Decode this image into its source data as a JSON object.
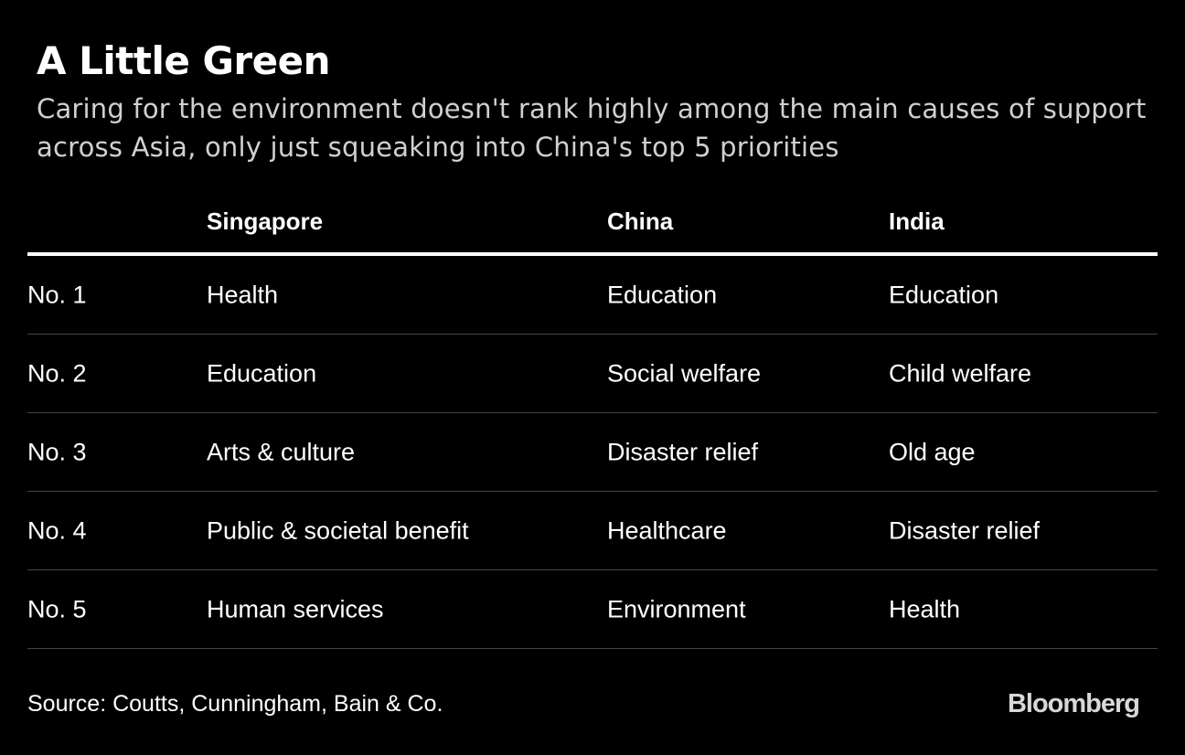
{
  "title": "A Little Green",
  "subtitle": "Caring for the environment doesn't rank highly among the main causes of support across Asia, only just squeaking into China's top 5 priorities",
  "chart_data": {
    "type": "table",
    "columns": [
      "",
      "Singapore",
      "China",
      "India"
    ],
    "rows": [
      [
        "No. 1",
        "Health",
        "Education",
        "Education"
      ],
      [
        "No. 2",
        "Education",
        "Social welfare",
        "Child welfare"
      ],
      [
        "No. 3",
        "Arts & culture",
        "Disaster relief",
        "Old age"
      ],
      [
        "No. 4",
        "Public & societal benefit",
        "Healthcare",
        "Disaster relief"
      ],
      [
        "No. 5",
        "Human services",
        "Environment",
        "Health"
      ]
    ]
  },
  "source": "Source: Coutts, Cunningham, Bain & Co.",
  "logo": "Bloomberg"
}
